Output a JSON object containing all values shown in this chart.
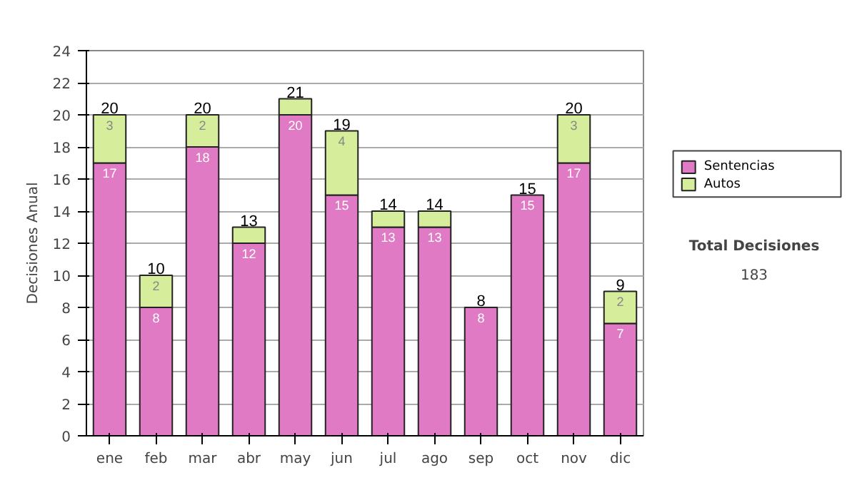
{
  "chart_data": {
    "type": "bar",
    "stacked": true,
    "ylabel": "Decisiones Anual",
    "categories": [
      "ene",
      "feb",
      "mar",
      "abr",
      "may",
      "jun",
      "jul",
      "ago",
      "sep",
      "oct",
      "nov",
      "dic"
    ],
    "series": [
      {
        "name": "Sentencias",
        "color": "#e07ac4",
        "values": [
          17,
          8,
          18,
          12,
          20,
          15,
          13,
          13,
          8,
          15,
          17,
          7
        ],
        "value_labels": [
          "17",
          "8",
          "18",
          "12",
          "20",
          "15",
          "13",
          "13",
          "8",
          "15",
          "17",
          "7"
        ]
      },
      {
        "name": "Autos",
        "color": "#d6ee9c",
        "values": [
          3,
          2,
          2,
          1,
          1,
          4,
          1,
          1,
          0,
          0,
          3,
          2
        ],
        "value_labels": [
          "3",
          "2",
          "2",
          null,
          null,
          "4",
          null,
          null,
          null,
          null,
          "3",
          "2"
        ]
      }
    ],
    "totals": [
      "20",
      "10",
      "20",
      "13",
      "21",
      "19",
      "14",
      "14",
      "8",
      "15",
      "20",
      "9"
    ],
    "ylim": [
      0,
      24
    ],
    "yticks": [
      0,
      2,
      4,
      6,
      8,
      10,
      12,
      14,
      16,
      18,
      20,
      22,
      24
    ],
    "grid": "y",
    "legend": "right",
    "annotations": [
      "Total Decisiones",
      "183"
    ]
  }
}
